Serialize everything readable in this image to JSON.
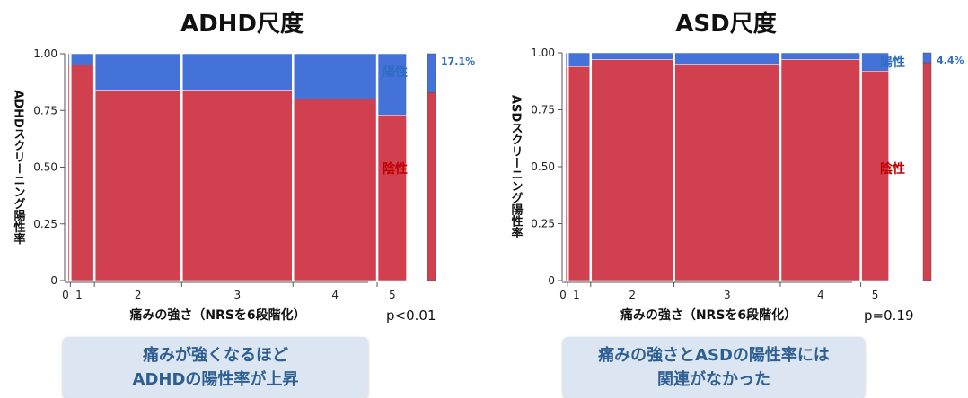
{
  "colors": {
    "positive": "#4472d9",
    "negative": "#d0404f",
    "positive_label": "#2f6cc4",
    "negative_label": "#c00000",
    "axis": "#555555",
    "panel_bg": "#dce6f2",
    "panel_text": "#2e5f93"
  },
  "chart_data": [
    {
      "type": "mosaic",
      "title": "ADHD尺度",
      "xlabel": "痛みの強さ（NRSを6段階化）",
      "ylabel": "ADHDスクリーニング陽性率",
      "ylim": [
        0,
        1
      ],
      "yticks": [
        "0",
        "0.25",
        "0.50",
        "0.75",
        "1.00"
      ],
      "categories": [
        "0",
        "1",
        "2",
        "3",
        "4",
        "5"
      ],
      "column_share": [
        0.01,
        0.08,
        0.29,
        0.37,
        0.28,
        0.1
      ],
      "series": [
        {
          "name": "陽性",
          "values": [
            0.05,
            0.05,
            0.16,
            0.16,
            0.2,
            0.27
          ]
        },
        {
          "name": "陰性",
          "values": [
            0.95,
            0.95,
            0.84,
            0.84,
            0.8,
            0.73
          ]
        }
      ],
      "overall": {
        "positive": 0.171,
        "label": "17.1%"
      },
      "legend": {
        "positive": "陽性",
        "negative": "陰性"
      },
      "p_value": "p<0.01",
      "conclusion": [
        "痛みが強くなるほど",
        "ADHDの陽性率が上昇"
      ]
    },
    {
      "type": "mosaic",
      "title": "ASD尺度",
      "xlabel": "痛みの強さ（NRSを6段階化）",
      "ylabel": "ASDスクリーニング陽性率",
      "ylim": [
        0,
        1
      ],
      "yticks": [
        "0",
        "0.25",
        "0.50",
        "0.75",
        "1.00"
      ],
      "categories": [
        "0",
        "1",
        "2",
        "3",
        "4",
        "5"
      ],
      "column_share": [
        0.01,
        0.08,
        0.29,
        0.37,
        0.28,
        0.1
      ],
      "series": [
        {
          "name": "陽性",
          "values": [
            0.06,
            0.06,
            0.03,
            0.05,
            0.03,
            0.08
          ]
        },
        {
          "name": "陰性",
          "values": [
            0.94,
            0.94,
            0.97,
            0.95,
            0.97,
            0.92
          ]
        }
      ],
      "overall": {
        "positive": 0.044,
        "label": "4.4%"
      },
      "legend": {
        "positive": "陽性",
        "negative": "陰性"
      },
      "p_value": "p=0.19",
      "conclusion": [
        "痛みの強さとASDの陽性率には",
        "関連がなかった"
      ]
    }
  ]
}
